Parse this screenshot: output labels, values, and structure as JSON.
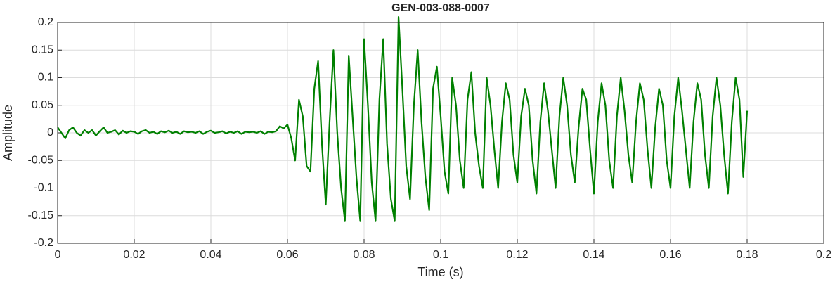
{
  "chart_data": {
    "type": "line",
    "title": "GEN-003-088-0007",
    "xlabel": "Time (s)",
    "ylabel": "Amplitude",
    "color": "#008000",
    "grid": true,
    "xlim": [
      0,
      0.2
    ],
    "xticks": [
      0,
      0.02,
      0.04,
      0.06,
      0.08,
      0.1,
      0.12,
      0.14,
      0.16,
      0.18,
      0.2
    ],
    "ylim": [
      -0.2,
      0.2
    ],
    "yticks": [
      -0.2,
      -0.15,
      -0.1,
      -0.05,
      0,
      0.05,
      0.1,
      0.15,
      0.2
    ],
    "x": [
      0,
      0.001,
      0.002,
      0.003,
      0.004,
      0.005,
      0.006,
      0.007,
      0.008,
      0.009,
      0.01,
      0.011,
      0.012,
      0.013,
      0.014,
      0.015,
      0.016,
      0.017,
      0.018,
      0.019,
      0.02,
      0.021,
      0.022,
      0.023,
      0.024,
      0.025,
      0.026,
      0.027,
      0.028,
      0.029,
      0.03,
      0.031,
      0.032,
      0.033,
      0.034,
      0.035,
      0.036,
      0.037,
      0.038,
      0.039,
      0.04,
      0.041,
      0.042,
      0.043,
      0.044,
      0.045,
      0.046,
      0.047,
      0.048,
      0.049,
      0.05,
      0.051,
      0.052,
      0.053,
      0.054,
      0.055,
      0.056,
      0.057,
      0.058,
      0.059,
      0.06,
      0.061,
      0.062,
      0.063,
      0.064,
      0.065,
      0.066,
      0.067,
      0.068,
      0.069,
      0.07,
      0.071,
      0.072,
      0.073,
      0.074,
      0.075,
      0.076,
      0.077,
      0.078,
      0.079,
      0.08,
      0.081,
      0.082,
      0.083,
      0.084,
      0.085,
      0.086,
      0.087,
      0.088,
      0.089,
      0.09,
      0.091,
      0.092,
      0.093,
      0.094,
      0.095,
      0.096,
      0.097,
      0.098,
      0.099,
      0.1,
      0.101,
      0.102,
      0.103,
      0.104,
      0.105,
      0.106,
      0.107,
      0.108,
      0.109,
      0.11,
      0.111,
      0.112,
      0.113,
      0.114,
      0.115,
      0.116,
      0.117,
      0.118,
      0.119,
      0.12,
      0.121,
      0.122,
      0.123,
      0.124,
      0.125,
      0.126,
      0.127,
      0.128,
      0.129,
      0.13,
      0.131,
      0.132,
      0.133,
      0.134,
      0.135,
      0.136,
      0.137,
      0.138,
      0.139,
      0.14,
      0.141,
      0.142,
      0.143,
      0.144,
      0.145,
      0.146,
      0.147,
      0.148,
      0.149,
      0.15,
      0.151,
      0.152,
      0.153,
      0.154,
      0.155,
      0.156,
      0.157,
      0.158,
      0.159,
      0.16,
      0.161,
      0.162,
      0.163,
      0.164,
      0.165,
      0.166,
      0.167,
      0.168,
      0.169,
      0.17,
      0.171,
      0.172,
      0.173,
      0.174,
      0.175,
      0.176,
      0.177,
      0.178,
      0.179,
      0.18
    ],
    "values": [
      0.01,
      0,
      -0.01,
      0.005,
      0.01,
      0,
      -0.005,
      0.005,
      0,
      0.005,
      -0.005,
      0.003,
      0.01,
      0,
      0.002,
      0.005,
      -0.003,
      0.004,
      0,
      0.003,
      0.002,
      -0.002,
      0.003,
      0.005,
      0,
      0.002,
      -0.002,
      0.003,
      0.001,
      0.004,
      0,
      0.002,
      -0.002,
      0.003,
      0.001,
      0.002,
      0,
      0.003,
      -0.002,
      0.002,
      0.004,
      0,
      0.001,
      0.003,
      -0.001,
      0.002,
      0,
      0.003,
      -0.002,
      0.002,
      0.001,
      0.002,
      0,
      0.003,
      -0.002,
      0.002,
      0.001,
      0.003,
      0.012,
      0.008,
      0.015,
      -0.01,
      -0.05,
      0.06,
      0.03,
      -0.06,
      -0.07,
      0.08,
      0.13,
      -0.02,
      -0.13,
      0.02,
      0.15,
      0,
      -0.1,
      -0.16,
      0.14,
      0.03,
      -0.08,
      -0.16,
      0.17,
      0.05,
      -0.09,
      -0.16,
      0.06,
      0.17,
      -0.02,
      -0.12,
      -0.16,
      0.21,
      0.08,
      -0.06,
      -0.12,
      0.05,
      0.15,
      0.02,
      -0.08,
      -0.14,
      0.08,
      0.12,
      0.03,
      -0.07,
      -0.11,
      0.1,
      0.05,
      -0.05,
      -0.1,
      0.06,
      0.11,
      0,
      -0.06,
      -0.1,
      0.1,
      0.05,
      -0.03,
      -0.1,
      0.02,
      0.09,
      0.06,
      -0.04,
      -0.09,
      0.03,
      0.08,
      0.05,
      -0.05,
      -0.11,
      0.02,
      0.09,
      0.04,
      -0.03,
      -0.1,
      0.03,
      0.1,
      0.05,
      -0.04,
      -0.09,
      0.01,
      0.08,
      0.06,
      -0.03,
      -0.11,
      0.02,
      0.09,
      0.05,
      -0.05,
      -0.1,
      0.03,
      0.1,
      0.04,
      -0.04,
      -0.09,
      0.02,
      0.09,
      0.06,
      -0.03,
      -0.1,
      0.01,
      0.08,
      0.05,
      -0.05,
      -0.1,
      0.03,
      0.1,
      0.04,
      -0.03,
      -0.1,
      0.02,
      0.09,
      0.06,
      -0.04,
      -0.1,
      0.03,
      0.1,
      0.05,
      -0.04,
      -0.11,
      0.02,
      0.1,
      0.06,
      -0.08,
      0.04
    ]
  }
}
